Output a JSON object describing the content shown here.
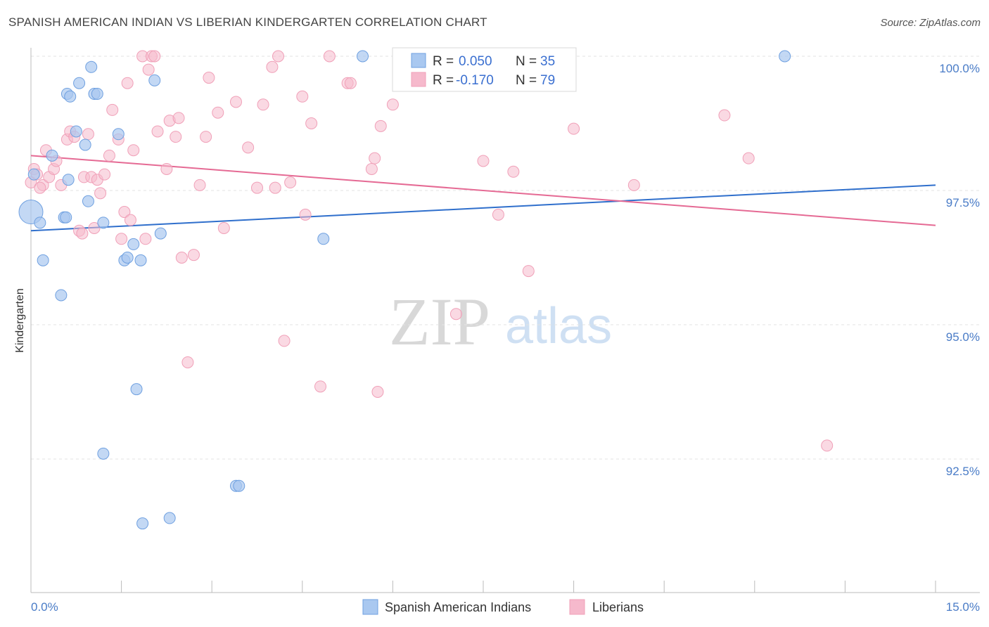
{
  "header": {
    "title": "SPANISH AMERICAN INDIAN VS LIBERIAN KINDERGARTEN CORRELATION CHART",
    "source": "Source: ZipAtlas.com"
  },
  "watermark": {
    "zip": "ZIP",
    "atlas": "atlas"
  },
  "legend": {
    "r_label": "R =",
    "n_label": "N =",
    "rows": [
      {
        "r": "0.050",
        "n": "35",
        "color": "#a9c8f0"
      },
      {
        "r": "-0.170",
        "n": "79",
        "color": "#f6b9cc"
      }
    ]
  },
  "bottom_legend": [
    {
      "label": "Spanish American Indians",
      "color": "#a9c8f0"
    },
    {
      "label": "Liberians",
      "color": "#f6b9cc"
    }
  ],
  "chart_data": {
    "type": "scatter",
    "title": "SPANISH AMERICAN INDIAN VS LIBERIAN KINDERGARTEN CORRELATION CHART",
    "xlabel": "",
    "ylabel": "Kindergarten",
    "xlim": [
      0,
      15
    ],
    "ylim": [
      90.35,
      100.2
    ],
    "x_tick_labels": [
      "0.0%",
      "15.0%"
    ],
    "y_ticks": [
      100.0,
      97.5,
      95.0,
      92.5
    ],
    "y_tick_labels": [
      "100.0%",
      "97.5%",
      "95.0%",
      "92.5%"
    ],
    "grid": true,
    "series": [
      {
        "name": "Spanish American Indians",
        "color": "#6fa0e0",
        "fill": "#a9c8f0",
        "trend": [
          [
            0,
            96.75
          ],
          [
            15,
            97.6
          ]
        ],
        "trend_color": "#2f6fcc",
        "points": [
          [
            0.0,
            97.1
          ],
          [
            0.15,
            96.9
          ],
          [
            0.05,
            97.8
          ],
          [
            0.35,
            98.15
          ],
          [
            0.2,
            96.2
          ],
          [
            0.55,
            97.0
          ],
          [
            0.6,
            99.3
          ],
          [
            0.75,
            98.6
          ],
          [
            0.8,
            99.5
          ],
          [
            0.9,
            98.35
          ],
          [
            0.65,
            99.25
          ],
          [
            1.0,
            99.8
          ],
          [
            1.05,
            99.3
          ],
          [
            1.1,
            99.3
          ],
          [
            0.95,
            97.3
          ],
          [
            1.2,
            96.9
          ],
          [
            1.45,
            98.55
          ],
          [
            1.55,
            96.2
          ],
          [
            1.6,
            96.25
          ],
          [
            1.7,
            96.5
          ],
          [
            1.82,
            96.2
          ],
          [
            2.05,
            99.55
          ],
          [
            2.15,
            96.7
          ],
          [
            2.3,
            91.4
          ],
          [
            1.2,
            92.6
          ],
          [
            1.75,
            93.8
          ],
          [
            1.85,
            91.3
          ],
          [
            3.4,
            92.0
          ],
          [
            3.45,
            92.0
          ],
          [
            4.85,
            96.6
          ],
          [
            5.5,
            100.2
          ],
          [
            12.5,
            100.2
          ],
          [
            0.58,
            97.0
          ],
          [
            0.62,
            97.7
          ],
          [
            0.5,
            95.55
          ]
        ]
      },
      {
        "name": "Liberians",
        "color": "#f0a0b8",
        "fill": "#f6b9cc",
        "trend": [
          [
            0,
            98.15
          ],
          [
            15,
            96.85
          ]
        ],
        "trend_color": "#e56a94",
        "points": [
          [
            0.0,
            97.65
          ],
          [
            0.05,
            97.9
          ],
          [
            0.1,
            97.8
          ],
          [
            0.2,
            97.6
          ],
          [
            0.25,
            98.25
          ],
          [
            0.3,
            97.75
          ],
          [
            0.38,
            97.9
          ],
          [
            0.42,
            98.05
          ],
          [
            0.5,
            97.6
          ],
          [
            0.6,
            98.45
          ],
          [
            0.65,
            98.6
          ],
          [
            0.72,
            98.5
          ],
          [
            0.8,
            96.75
          ],
          [
            0.85,
            96.7
          ],
          [
            0.88,
            97.75
          ],
          [
            0.95,
            98.55
          ],
          [
            1.0,
            97.75
          ],
          [
            1.05,
            96.8
          ],
          [
            1.1,
            97.7
          ],
          [
            1.15,
            97.45
          ],
          [
            1.22,
            97.8
          ],
          [
            1.3,
            98.15
          ],
          [
            1.35,
            99.0
          ],
          [
            1.45,
            98.45
          ],
          [
            1.5,
            96.6
          ],
          [
            1.55,
            97.1
          ],
          [
            1.6,
            99.5
          ],
          [
            1.65,
            96.95
          ],
          [
            1.7,
            98.25
          ],
          [
            1.85,
            100.1
          ],
          [
            1.9,
            96.6
          ],
          [
            1.95,
            99.75
          ],
          [
            2.0,
            100.2
          ],
          [
            2.05,
            100.2
          ],
          [
            2.1,
            98.6
          ],
          [
            2.25,
            97.9
          ],
          [
            2.3,
            98.8
          ],
          [
            2.4,
            98.5
          ],
          [
            2.45,
            98.85
          ],
          [
            2.5,
            96.25
          ],
          [
            2.6,
            94.3
          ],
          [
            2.7,
            96.3
          ],
          [
            2.8,
            97.6
          ],
          [
            2.9,
            98.5
          ],
          [
            2.95,
            99.6
          ],
          [
            3.1,
            98.95
          ],
          [
            3.2,
            96.8
          ],
          [
            3.4,
            99.15
          ],
          [
            3.6,
            98.3
          ],
          [
            3.75,
            97.55
          ],
          [
            3.85,
            99.1
          ],
          [
            4.0,
            99.8
          ],
          [
            4.05,
            97.55
          ],
          [
            4.1,
            100.2
          ],
          [
            4.2,
            94.7
          ],
          [
            4.3,
            97.65
          ],
          [
            4.5,
            99.25
          ],
          [
            4.55,
            97.05
          ],
          [
            4.65,
            98.75
          ],
          [
            4.8,
            93.85
          ],
          [
            4.95,
            100.2
          ],
          [
            5.25,
            99.5
          ],
          [
            5.3,
            99.5
          ],
          [
            5.65,
            97.9
          ],
          [
            5.7,
            98.1
          ],
          [
            5.75,
            93.75
          ],
          [
            5.8,
            98.7
          ],
          [
            6.0,
            99.1
          ],
          [
            7.05,
            95.2
          ],
          [
            7.5,
            98.05
          ],
          [
            7.75,
            97.05
          ],
          [
            8.0,
            97.85
          ],
          [
            8.25,
            96.0
          ],
          [
            9.0,
            98.65
          ],
          [
            10.0,
            97.6
          ],
          [
            11.5,
            98.9
          ],
          [
            11.9,
            98.1
          ],
          [
            13.2,
            92.75
          ],
          [
            0.15,
            97.55
          ]
        ]
      }
    ]
  }
}
